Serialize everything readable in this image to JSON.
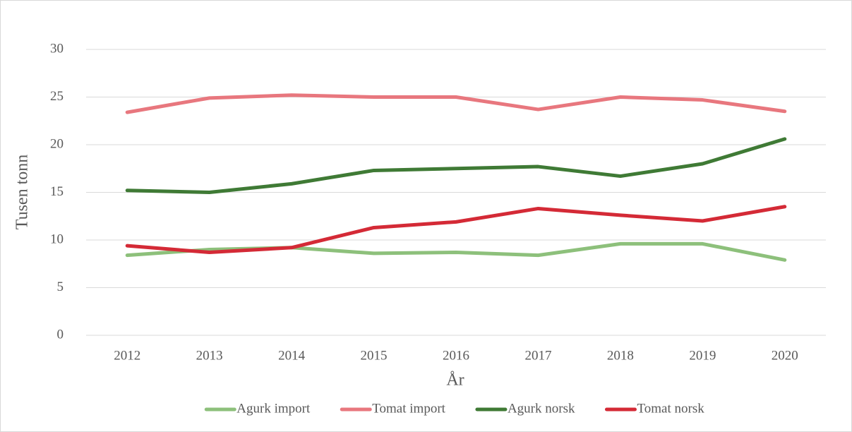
{
  "chart_data": {
    "type": "line",
    "ylabel": "Tusen tonn",
    "xlabel": "År",
    "categories": [
      "2012",
      "2013",
      "2014",
      "2015",
      "2016",
      "2017",
      "2018",
      "2019",
      "2020"
    ],
    "series": [
      {
        "name": "Agurk import",
        "color": "#8dc07b",
        "values": [
          8.4,
          9.0,
          9.2,
          8.6,
          8.7,
          8.4,
          9.6,
          9.6,
          7.9
        ]
      },
      {
        "name": "Tomat import",
        "color": "#e8777e",
        "values": [
          23.4,
          24.9,
          25.2,
          25.0,
          25.0,
          23.7,
          25.0,
          24.7,
          23.5
        ]
      },
      {
        "name": "Agurk norsk",
        "color": "#3f7a35",
        "values": [
          15.2,
          15.0,
          15.9,
          17.3,
          17.5,
          17.7,
          16.7,
          18.0,
          20.6
        ]
      },
      {
        "name": "Tomat norsk",
        "color": "#d42a36",
        "values": [
          9.4,
          8.7,
          9.2,
          11.3,
          11.9,
          13.3,
          12.6,
          12.0,
          13.5
        ]
      }
    ],
    "ylim": [
      0,
      30
    ],
    "yticks": [
      0,
      5,
      10,
      15,
      20,
      25,
      30
    ],
    "grid": true,
    "legend": "bottom"
  }
}
